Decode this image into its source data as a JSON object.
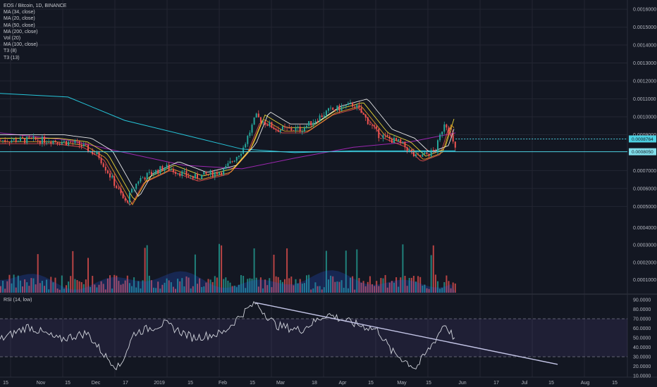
{
  "header": {
    "title": "EOS / Bitcoin, 1D, BINANCE",
    "indicators": [
      "MA (34, close)",
      "MA (20, close)",
      "MA (50, close)",
      "MA (200, close)",
      "Vol (20)",
      "MA (100, close)",
      "T3 (8)",
      "T3 (13)"
    ]
  },
  "rsi_label": "RSI (14, low)",
  "price_labels": {
    "current": "0.0008764",
    "support": "0.0008050"
  },
  "colors": {
    "background": "#131722",
    "up": "#26a69a",
    "down": "#ef5350",
    "grid": "#232632",
    "support": "#4dd0e1",
    "trendline": "#c5c6e8"
  },
  "chart_data": [
    {
      "type": "candlestick",
      "title": "EOS / Bitcoin, 1D, BINANCE",
      "price_axis_ticks": [
        "0.0016000",
        "0.0015000",
        "0.0014000",
        "0.0013000",
        "0.0012000",
        "0.0011000",
        "0.0010000",
        "0.0009000",
        "0.0007000",
        "0.0006000",
        "0.0005000"
      ],
      "volume_axis_ticks": [
        "0.0004000",
        "0.0003000",
        "0.0002000",
        "0.0001000"
      ],
      "time_axis_ticks": [
        "15",
        "Nov",
        "15",
        "Dec",
        "17",
        "2019",
        "15",
        "Feb",
        "15",
        "Mar",
        "18",
        "Apr",
        "15",
        "May",
        "15",
        "Jun",
        "17",
        "Jul",
        "15",
        "Aug",
        "15"
      ],
      "ylim": [
        0.00047,
        0.00162
      ],
      "horizontal_lines": [
        0.0008764,
        0.000805
      ],
      "series_close": [
        {
          "date": "2018-10-10",
          "value": 0.00087
        },
        {
          "date": "2018-11-05",
          "value": 0.00087
        },
        {
          "date": "2018-11-20",
          "value": 0.00085
        },
        {
          "date": "2018-12-01",
          "value": 0.00078
        },
        {
          "date": "2018-12-08",
          "value": 0.00065
        },
        {
          "date": "2018-12-15",
          "value": 0.00052
        },
        {
          "date": "2018-12-22",
          "value": 0.00065
        },
        {
          "date": "2019-01-05",
          "value": 0.00072
        },
        {
          "date": "2019-01-20",
          "value": 0.00066
        },
        {
          "date": "2019-02-05",
          "value": 0.0007
        },
        {
          "date": "2019-02-15",
          "value": 0.00082
        },
        {
          "date": "2019-02-22",
          "value": 0.001
        },
        {
          "date": "2019-03-05",
          "value": 0.00093
        },
        {
          "date": "2019-03-18",
          "value": 0.00093
        },
        {
          "date": "2019-04-01",
          "value": 0.00103
        },
        {
          "date": "2019-04-15",
          "value": 0.00107
        },
        {
          "date": "2019-04-28",
          "value": 0.0009
        },
        {
          "date": "2019-05-10",
          "value": 0.00085
        },
        {
          "date": "2019-05-18",
          "value": 0.00077
        },
        {
          "date": "2019-05-28",
          "value": 0.00081
        },
        {
          "date": "2019-06-02",
          "value": 0.00098
        },
        {
          "date": "2019-06-08",
          "value": 0.0008
        }
      ],
      "moving_averages": [
        {
          "name": "MA (200, close)",
          "points": [
            {
              "date": "2018-10-10",
              "value": 0.00113
            },
            {
              "date": "2018-11-15",
              "value": 0.00111
            },
            {
              "date": "2018-12-15",
              "value": 0.00098
            },
            {
              "date": "2019-01-15",
              "value": 0.0009
            },
            {
              "date": "2019-02-15",
              "value": 0.00082
            },
            {
              "date": "2019-03-15",
              "value": 0.0008
            },
            {
              "date": "2019-04-15",
              "value": 0.00081
            },
            {
              "date": "2019-05-15",
              "value": 0.00081
            },
            {
              "date": "2019-06-08",
              "value": 0.00081
            }
          ]
        },
        {
          "name": "MA (100, close)",
          "points": [
            {
              "date": "2018-10-10",
              "value": 0.00091
            },
            {
              "date": "2018-11-15",
              "value": 0.00087
            },
            {
              "date": "2018-12-15",
              "value": 0.0008
            },
            {
              "date": "2019-01-15",
              "value": 0.00073
            },
            {
              "date": "2019-02-15",
              "value": 0.00071
            },
            {
              "date": "2019-03-15",
              "value": 0.00077
            },
            {
              "date": "2019-04-15",
              "value": 0.00083
            },
            {
              "date": "2019-05-15",
              "value": 0.00086
            },
            {
              "date": "2019-06-08",
              "value": 0.00091
            }
          ]
        }
      ]
    },
    {
      "type": "line",
      "title": "RSI (14, low)",
      "y_axis_ticks": [
        "90.0000",
        "80.0000",
        "70.0000",
        "60.0000",
        "50.0000",
        "40.0000",
        "30.0000",
        "20.0000",
        "10.0000"
      ],
      "ylim": [
        10,
        90
      ],
      "bands": [
        30,
        70
      ],
      "trendline": [
        {
          "date": "2019-02-22",
          "value": 87
        },
        {
          "date": "2019-08-01",
          "value": 22
        }
      ],
      "points": [
        {
          "date": "2018-10-10",
          "value": 48
        },
        {
          "date": "2018-10-25",
          "value": 62
        },
        {
          "date": "2018-11-10",
          "value": 48
        },
        {
          "date": "2018-11-25",
          "value": 55
        },
        {
          "date": "2018-12-05",
          "value": 30
        },
        {
          "date": "2018-12-12",
          "value": 18
        },
        {
          "date": "2018-12-20",
          "value": 55
        },
        {
          "date": "2019-01-05",
          "value": 65
        },
        {
          "date": "2019-01-20",
          "value": 50
        },
        {
          "date": "2019-02-05",
          "value": 55
        },
        {
          "date": "2019-02-15",
          "value": 75
        },
        {
          "date": "2019-02-22",
          "value": 87
        },
        {
          "date": "2019-03-05",
          "value": 63
        },
        {
          "date": "2019-03-18",
          "value": 58
        },
        {
          "date": "2019-04-01",
          "value": 75
        },
        {
          "date": "2019-04-15",
          "value": 65
        },
        {
          "date": "2019-04-28",
          "value": 58
        },
        {
          "date": "2019-05-05",
          "value": 36
        },
        {
          "date": "2019-05-18",
          "value": 18
        },
        {
          "date": "2019-05-28",
          "value": 47
        },
        {
          "date": "2019-06-02",
          "value": 65
        },
        {
          "date": "2019-06-08",
          "value": 48
        }
      ]
    }
  ]
}
